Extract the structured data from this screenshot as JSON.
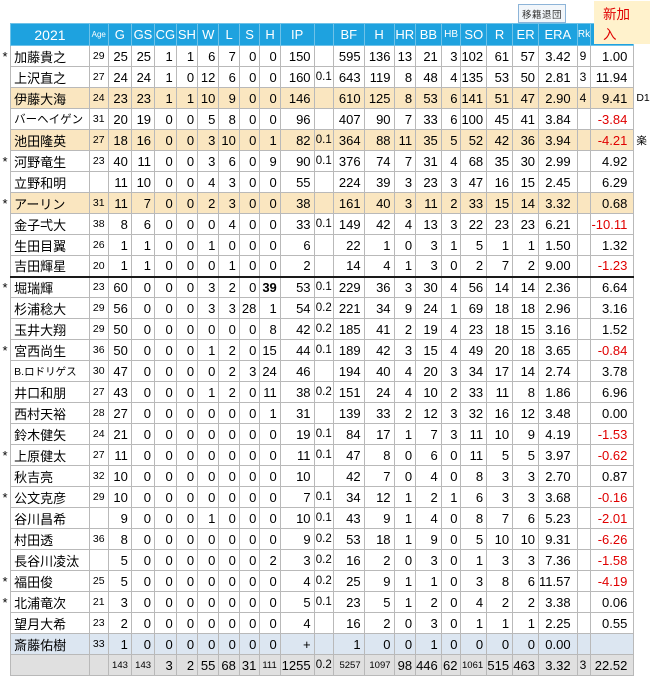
{
  "legend": {
    "transfer": "移籍退団",
    "newcomer": "新加入"
  },
  "columns": {
    "year": "2021",
    "age": "Age",
    "g": "G",
    "gs": "GS",
    "cg": "CG",
    "sh": "SH",
    "w": "W",
    "l": "L",
    "s": "S",
    "h": "H",
    "ip": "IP",
    "ipf": "",
    "bf": "BF",
    "ha": "H",
    "hr": "HR",
    "bb": "BB",
    "hbp": "HB",
    "so": "SO",
    "r": "R",
    "er": "ER",
    "era": "ERA",
    "rk": "Rk",
    "pr": "PR"
  },
  "players": [
    {
      "star": true,
      "name": "加藤貴之",
      "age": "29",
      "g": "25",
      "gs": "25",
      "cg": "1",
      "sh": "1",
      "w": "6",
      "l": "7",
      "s": "0",
      "h": "0",
      "ip": "150",
      "ipf": "",
      "bf": "595",
      "ha": "136",
      "hr": "13",
      "bb": "21",
      "hbp": "3",
      "so": "102",
      "r": "61",
      "er": "57",
      "era": "3.42",
      "rk": "9",
      "pr": "1.00"
    },
    {
      "star": false,
      "name": "上沢直之",
      "age": "27",
      "g": "24",
      "gs": "24",
      "cg": "1",
      "sh": "0",
      "w": "12",
      "l": "6",
      "s": "0",
      "h": "0",
      "ip": "160",
      "ipf": "0.1",
      "bf": "643",
      "ha": "119",
      "hr": "8",
      "bb": "48",
      "hbp": "4",
      "so": "135",
      "r": "53",
      "er": "50",
      "era": "2.81",
      "rk": "3",
      "pr": "11.94"
    },
    {
      "star": false,
      "name": "伊藤大海",
      "age": "24",
      "hl": "cream",
      "g": "23",
      "gs": "23",
      "cg": "1",
      "sh": "1",
      "w": "10",
      "l": "9",
      "s": "0",
      "h": "0",
      "ip": "146",
      "ipf": "",
      "bf": "610",
      "ha": "125",
      "hr": "8",
      "bb": "53",
      "hbp": "6",
      "so": "141",
      "r": "51",
      "er": "47",
      "era": "2.90",
      "rk": "4",
      "pr": "9.41",
      "note": "D1"
    },
    {
      "star": false,
      "name": "バーヘイゲン",
      "nc": "sm",
      "age": "31",
      "g": "20",
      "gs": "19",
      "cg": "0",
      "sh": "0",
      "w": "5",
      "l": "8",
      "s": "0",
      "h": "0",
      "ip": "96",
      "ipf": "",
      "bf": "407",
      "ha": "90",
      "hr": "7",
      "bb": "33",
      "hbp": "6",
      "so": "100",
      "r": "45",
      "er": "41",
      "era": "3.84",
      "rk": "",
      "pr": "-3.84",
      "neg": true
    },
    {
      "star": false,
      "name": "池田隆英",
      "age": "27",
      "hl": "cream",
      "g": "18",
      "gs": "16",
      "cg": "0",
      "sh": "0",
      "w": "3",
      "l": "10",
      "s": "0",
      "h": "1",
      "ip": "82",
      "ipf": "0.1",
      "bf": "364",
      "ha": "88",
      "hr": "11",
      "bb": "35",
      "hbp": "5",
      "so": "52",
      "r": "42",
      "er": "36",
      "era": "3.94",
      "rk": "",
      "pr": "-4.21",
      "neg": true,
      "note": "楽"
    },
    {
      "star": true,
      "name": "河野竜生",
      "age": "23",
      "g": "40",
      "gs": "11",
      "cg": "0",
      "sh": "0",
      "w": "3",
      "l": "6",
      "s": "0",
      "h": "9",
      "ip": "90",
      "ipf": "0.1",
      "bf": "376",
      "ha": "74",
      "hr": "7",
      "bb": "31",
      "hbp": "4",
      "so": "68",
      "r": "35",
      "er": "30",
      "era": "2.99",
      "rk": "",
      "pr": "4.92"
    },
    {
      "star": false,
      "name": "立野和明",
      "age": "",
      "g": "11",
      "gs": "10",
      "cg": "0",
      "sh": "0",
      "w": "4",
      "l": "3",
      "s": "0",
      "h": "0",
      "ip": "55",
      "ipf": "",
      "bf": "224",
      "ha": "39",
      "hr": "3",
      "bb": "23",
      "hbp": "3",
      "so": "47",
      "r": "16",
      "er": "15",
      "era": "2.45",
      "rk": "",
      "pr": "6.29"
    },
    {
      "star": true,
      "name": "アーリン",
      "age": "31",
      "hl": "cream",
      "g": "11",
      "gs": "7",
      "cg": "0",
      "sh": "0",
      "w": "2",
      "l": "3",
      "s": "0",
      "h": "0",
      "ip": "38",
      "ipf": "",
      "bf": "161",
      "ha": "40",
      "hr": "3",
      "bb": "11",
      "hbp": "2",
      "so": "33",
      "r": "15",
      "er": "14",
      "era": "3.32",
      "rk": "",
      "pr": "0.68"
    },
    {
      "star": false,
      "name": "金子弌大",
      "age": "38",
      "g": "8",
      "gs": "6",
      "cg": "0",
      "sh": "0",
      "w": "0",
      "l": "4",
      "s": "0",
      "h": "0",
      "ip": "33",
      "ipf": "0.1",
      "bf": "149",
      "ha": "42",
      "hr": "4",
      "bb": "13",
      "hbp": "3",
      "so": "22",
      "r": "23",
      "er": "23",
      "era": "6.21",
      "rk": "",
      "pr": "-10.11",
      "neg": true
    },
    {
      "star": false,
      "name": "生田目翼",
      "age": "26",
      "g": "1",
      "gs": "1",
      "cg": "0",
      "sh": "0",
      "w": "1",
      "l": "0",
      "s": "0",
      "h": "0",
      "ip": "6",
      "ipf": "",
      "bf": "22",
      "ha": "1",
      "hr": "0",
      "bb": "3",
      "hbp": "1",
      "so": "5",
      "r": "1",
      "er": "1",
      "era": "1.50",
      "rk": "",
      "pr": "1.32"
    },
    {
      "star": false,
      "name": "吉田輝星",
      "age": "20",
      "g": "1",
      "gs": "1",
      "cg": "0",
      "sh": "0",
      "w": "0",
      "l": "1",
      "s": "0",
      "h": "0",
      "ip": "2",
      "ipf": "",
      "bf": "14",
      "ha": "4",
      "hr": "1",
      "bb": "3",
      "hbp": "0",
      "so": "2",
      "r": "7",
      "er": "2",
      "era": "9.00",
      "rk": "",
      "pr": "-1.23",
      "neg": true
    },
    {
      "star": true,
      "name": "堀瑞輝",
      "age": "23",
      "thick": true,
      "g": "60",
      "gs": "0",
      "cg": "0",
      "sh": "0",
      "w": "3",
      "l": "2",
      "s": "0",
      "h": "39",
      "h_bold": true,
      "ip": "53",
      "ipf": "0.1",
      "bf": "229",
      "ha": "36",
      "hr": "3",
      "bb": "30",
      "hbp": "4",
      "so": "56",
      "r": "14",
      "er": "14",
      "era": "2.36",
      "rk": "",
      "pr": "6.64"
    },
    {
      "star": false,
      "name": "杉浦稔大",
      "age": "29",
      "g": "56",
      "gs": "0",
      "cg": "0",
      "sh": "0",
      "w": "3",
      "l": "3",
      "s": "28",
      "h": "1",
      "ip": "54",
      "ipf": "0.2",
      "bf": "221",
      "ha": "34",
      "hr": "9",
      "bb": "24",
      "hbp": "1",
      "so": "69",
      "r": "18",
      "er": "18",
      "era": "2.96",
      "rk": "",
      "pr": "3.16"
    },
    {
      "star": false,
      "name": "玉井大翔",
      "age": "29",
      "g": "50",
      "gs": "0",
      "cg": "0",
      "sh": "0",
      "w": "0",
      "l": "0",
      "s": "0",
      "h": "8",
      "ip": "42",
      "ipf": "0.2",
      "bf": "185",
      "ha": "41",
      "hr": "2",
      "bb": "19",
      "hbp": "4",
      "so": "23",
      "r": "18",
      "er": "15",
      "era": "3.16",
      "rk": "",
      "pr": "1.52"
    },
    {
      "star": true,
      "name": "宮西尚生",
      "age": "36",
      "g": "50",
      "gs": "0",
      "cg": "0",
      "sh": "0",
      "w": "1",
      "l": "2",
      "s": "0",
      "h": "15",
      "ip": "44",
      "ipf": "0.1",
      "bf": "189",
      "ha": "42",
      "hr": "3",
      "bb": "15",
      "hbp": "4",
      "so": "49",
      "r": "20",
      "er": "18",
      "era": "3.65",
      "rk": "",
      "pr": "-0.84",
      "neg": true
    },
    {
      "star": false,
      "name": "B.ロドリゲス",
      "nc": "xs",
      "age": "30",
      "g": "47",
      "gs": "0",
      "cg": "0",
      "sh": "0",
      "w": "0",
      "l": "2",
      "s": "3",
      "h": "24",
      "ip": "46",
      "ipf": "",
      "bf": "194",
      "ha": "40",
      "hr": "4",
      "bb": "20",
      "hbp": "3",
      "so": "34",
      "r": "17",
      "er": "14",
      "era": "2.74",
      "rk": "",
      "pr": "3.78"
    },
    {
      "star": false,
      "name": "井口和朋",
      "age": "27",
      "g": "43",
      "gs": "0",
      "cg": "0",
      "sh": "0",
      "w": "1",
      "l": "2",
      "s": "0",
      "h": "11",
      "ip": "38",
      "ipf": "0.2",
      "bf": "151",
      "ha": "24",
      "hr": "4",
      "bb": "10",
      "hbp": "2",
      "so": "33",
      "r": "11",
      "er": "8",
      "era": "1.86",
      "rk": "",
      "pr": "6.96"
    },
    {
      "star": false,
      "name": "西村天裕",
      "age": "28",
      "g": "27",
      "gs": "0",
      "cg": "0",
      "sh": "0",
      "w": "0",
      "l": "0",
      "s": "0",
      "h": "1",
      "ip": "31",
      "ipf": "",
      "bf": "139",
      "ha": "33",
      "hr": "2",
      "bb": "12",
      "hbp": "3",
      "so": "32",
      "r": "16",
      "er": "12",
      "era": "3.48",
      "rk": "",
      "pr": "0.00"
    },
    {
      "star": false,
      "name": "鈴木健矢",
      "age": "24",
      "g": "21",
      "gs": "0",
      "cg": "0",
      "sh": "0",
      "w": "0",
      "l": "0",
      "s": "0",
      "h": "0",
      "ip": "19",
      "ipf": "0.1",
      "bf": "84",
      "ha": "17",
      "hr": "1",
      "bb": "7",
      "hbp": "3",
      "so": "11",
      "r": "10",
      "er": "9",
      "era": "4.19",
      "rk": "",
      "pr": "-1.53",
      "neg": true
    },
    {
      "star": true,
      "name": "上原健太",
      "age": "27",
      "g": "11",
      "gs": "0",
      "cg": "0",
      "sh": "0",
      "w": "0",
      "l": "0",
      "s": "0",
      "h": "0",
      "ip": "11",
      "ipf": "0.1",
      "bf": "47",
      "ha": "8",
      "hr": "0",
      "bb": "6",
      "hbp": "0",
      "so": "11",
      "r": "5",
      "er": "5",
      "era": "3.97",
      "rk": "",
      "pr": "-0.62",
      "neg": true
    },
    {
      "star": false,
      "name": "秋吉亮",
      "age": "32",
      "g": "10",
      "gs": "0",
      "cg": "0",
      "sh": "0",
      "w": "0",
      "l": "0",
      "s": "0",
      "h": "0",
      "ip": "10",
      "ipf": "",
      "bf": "42",
      "ha": "7",
      "hr": "0",
      "bb": "4",
      "hbp": "0",
      "so": "8",
      "r": "3",
      "er": "3",
      "era": "2.70",
      "rk": "",
      "pr": "0.87"
    },
    {
      "star": true,
      "name": "公文克彦",
      "age": "29",
      "g": "10",
      "gs": "0",
      "cg": "0",
      "sh": "0",
      "w": "0",
      "l": "0",
      "s": "0",
      "h": "0",
      "ip": "7",
      "ipf": "0.1",
      "bf": "34",
      "ha": "12",
      "hr": "1",
      "bb": "2",
      "hbp": "1",
      "so": "6",
      "r": "3",
      "er": "3",
      "era": "3.68",
      "rk": "",
      "pr": "-0.16",
      "neg": true
    },
    {
      "star": false,
      "name": "谷川昌希",
      "age": "",
      "g": "9",
      "gs": "0",
      "cg": "0",
      "sh": "0",
      "w": "1",
      "l": "0",
      "s": "0",
      "h": "0",
      "ip": "10",
      "ipf": "0.1",
      "bf": "43",
      "ha": "9",
      "hr": "1",
      "bb": "4",
      "hbp": "0",
      "so": "8",
      "r": "7",
      "er": "6",
      "era": "5.23",
      "rk": "",
      "pr": "-2.01",
      "neg": true
    },
    {
      "star": false,
      "name": "村田透",
      "age": "36",
      "g": "8",
      "gs": "0",
      "cg": "0",
      "sh": "0",
      "w": "0",
      "l": "0",
      "s": "0",
      "h": "0",
      "ip": "9",
      "ipf": "0.2",
      "bf": "53",
      "ha": "18",
      "hr": "1",
      "bb": "9",
      "hbp": "0",
      "so": "5",
      "r": "10",
      "er": "10",
      "era": "9.31",
      "rk": "",
      "pr": "-6.26",
      "neg": true
    },
    {
      "star": false,
      "name": "長谷川凌汰",
      "age": "",
      "g": "5",
      "gs": "0",
      "cg": "0",
      "sh": "0",
      "w": "0",
      "l": "0",
      "s": "0",
      "h": "2",
      "ip": "3",
      "ipf": "0.2",
      "bf": "16",
      "ha": "2",
      "hr": "0",
      "bb": "3",
      "hbp": "0",
      "so": "1",
      "r": "3",
      "er": "3",
      "era": "7.36",
      "rk": "",
      "pr": "-1.58",
      "neg": true
    },
    {
      "star": true,
      "name": "福田俊",
      "age": "25",
      "g": "5",
      "gs": "0",
      "cg": "0",
      "sh": "0",
      "w": "0",
      "l": "0",
      "s": "0",
      "h": "0",
      "ip": "4",
      "ipf": "0.2",
      "bf": "25",
      "ha": "9",
      "hr": "1",
      "bb": "1",
      "hbp": "0",
      "so": "3",
      "r": "8",
      "er": "6",
      "era": "11.57",
      "rk": "",
      "pr": "-4.19",
      "neg": true
    },
    {
      "star": true,
      "name": "北浦竜次",
      "age": "21",
      "g": "3",
      "gs": "0",
      "cg": "0",
      "sh": "0",
      "w": "0",
      "l": "0",
      "s": "0",
      "h": "0",
      "ip": "5",
      "ipf": "0.1",
      "bf": "23",
      "ha": "5",
      "hr": "1",
      "bb": "2",
      "hbp": "0",
      "so": "4",
      "r": "2",
      "er": "2",
      "era": "3.38",
      "rk": "",
      "pr": "0.06"
    },
    {
      "star": false,
      "name": "望月大希",
      "age": "23",
      "g": "2",
      "gs": "0",
      "cg": "0",
      "sh": "0",
      "w": "0",
      "l": "0",
      "s": "0",
      "h": "0",
      "ip": "4",
      "ipf": "",
      "bf": "16",
      "ha": "2",
      "hr": "0",
      "bb": "3",
      "hbp": "0",
      "so": "1",
      "r": "1",
      "er": "1",
      "era": "2.25",
      "rk": "",
      "pr": "0.55"
    },
    {
      "star": false,
      "name": "斎藤佑樹",
      "age": "33",
      "hl": "lavender",
      "g": "1",
      "gs": "0",
      "cg": "0",
      "sh": "0",
      "w": "0",
      "l": "0",
      "s": "0",
      "h": "0",
      "ip": "+",
      "ipf": "",
      "bf": "1",
      "ha": "0",
      "hr": "0",
      "bb": "1",
      "hbp": "0",
      "so": "0",
      "r": "0",
      "er": "0",
      "era": "0.00",
      "rk": "",
      "pr": ""
    }
  ],
  "total": {
    "name": "",
    "age": "",
    "g": "143",
    "gs": "143",
    "cg": "3",
    "sh": "2",
    "w": "55",
    "l": "68",
    "s": "31",
    "h": "111",
    "ip": "1255",
    "ipf": "0.2",
    "bf": "5257",
    "ha": "1097",
    "hr": "98",
    "bb": "446",
    "hbp": "62",
    "so": "1061",
    "r": "515",
    "er": "463",
    "era": "3.32",
    "rk": "3",
    "pr": "22.52"
  },
  "colors": {
    "header_bg": "#1EA2DF",
    "highlight_cream": "#FAE6C0",
    "highlight_lavender": "#DCE6F1",
    "total_bg": "#E0E0E0",
    "negative_text": "#E00000",
    "newcomer_bg": "#FFF2CC",
    "newcomer_text": "#E00000"
  }
}
